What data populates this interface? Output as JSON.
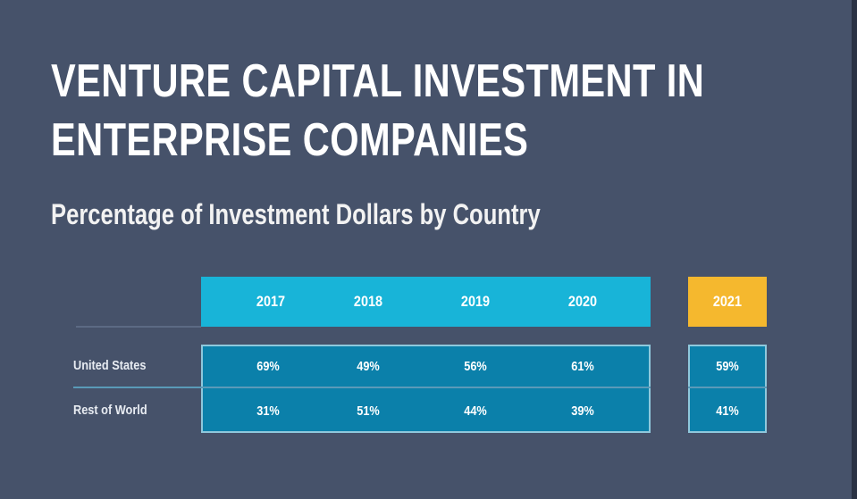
{
  "title_line1": "VENTURE CAPITAL INVESTMENT IN",
  "title_line2": "ENTERPRISE COMPANIES",
  "subtitle": "Percentage of Investment Dollars by Country",
  "colors": {
    "background": "#46526a",
    "header": "#18b4d8",
    "highlight_header": "#f5b82e",
    "cells": "#0b80aa"
  },
  "chart_data": {
    "type": "table",
    "title": "VENTURE CAPITAL INVESTMENT IN ENTERPRISE COMPANIES",
    "subtitle": "Percentage of Investment Dollars by Country",
    "categories": [
      "2017",
      "2018",
      "2019",
      "2020",
      "2021"
    ],
    "highlighted_category": "2021",
    "series": [
      {
        "name": "United States",
        "values": [
          "69%",
          "49%",
          "56%",
          "61%",
          "59%"
        ]
      },
      {
        "name": "Rest of World",
        "values": [
          "31%",
          "51%",
          "44%",
          "39%",
          "41%"
        ]
      }
    ]
  }
}
